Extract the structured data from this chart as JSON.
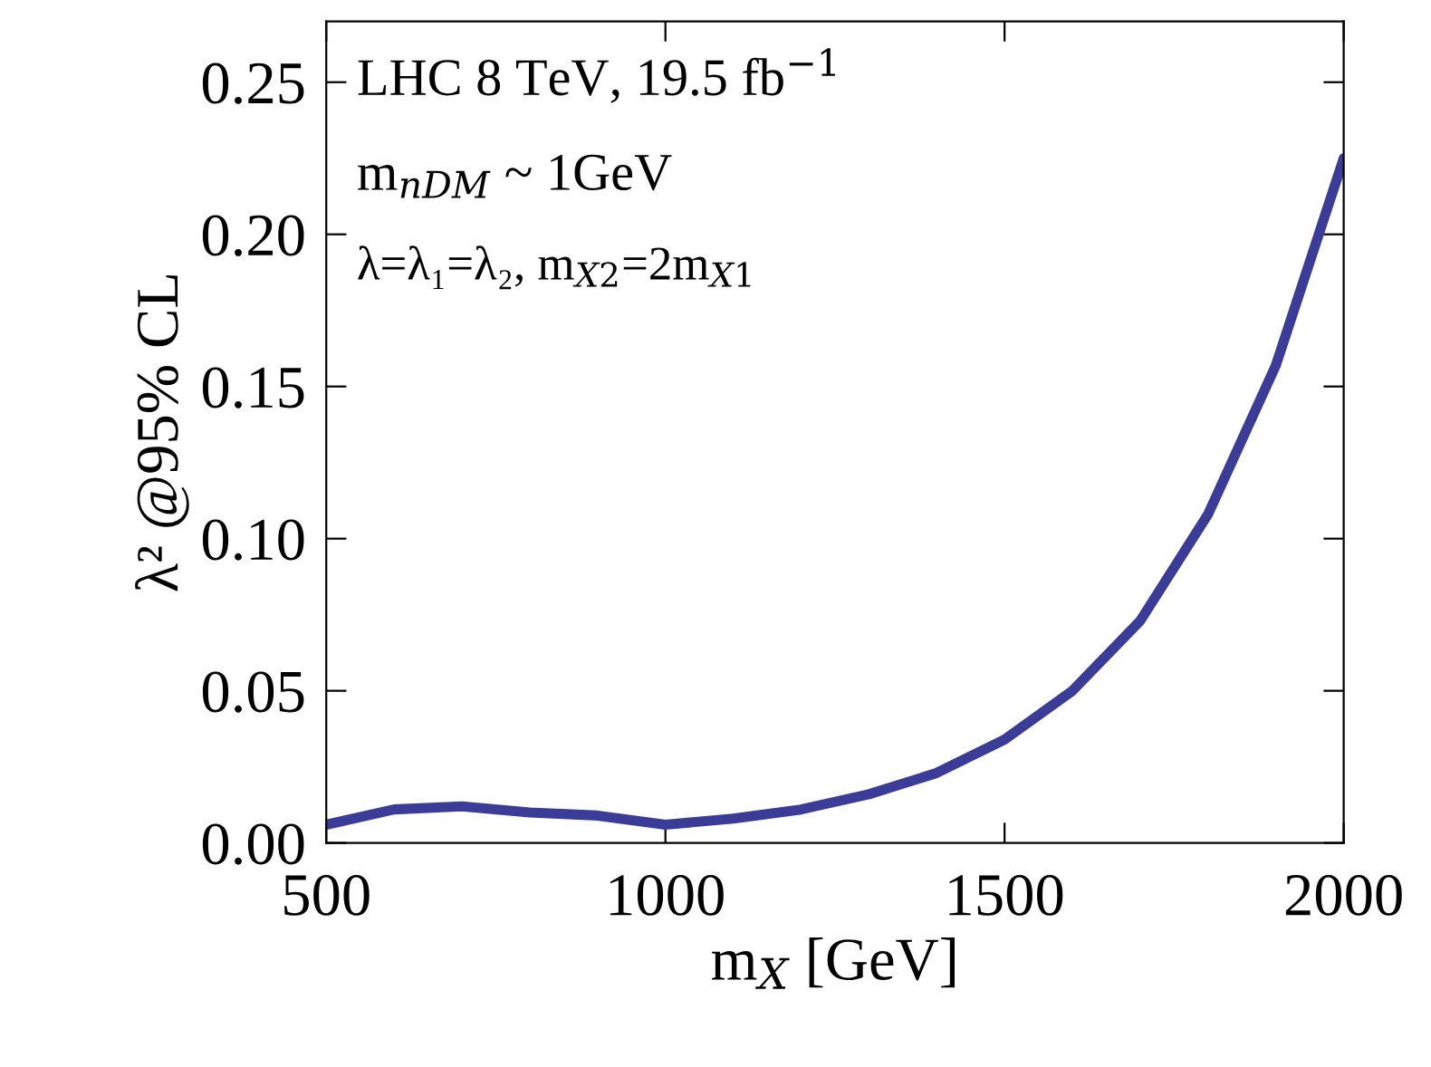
{
  "chart_data": {
    "type": "line",
    "xlabel": "m$_{X}$ [GeV]",
    "ylabel": "λ² @95% CL",
    "annotations": [
      "LHC 8 TeV, 19.5 fb$^{−1}$",
      "m$_{nDM}$ ~ 1GeV",
      "λ=λ₁=λ₂, m$_{X2}$=2m$_{X1}$"
    ],
    "x": [
      500,
      600,
      700,
      800,
      900,
      1000,
      1100,
      1200,
      1300,
      1400,
      1500,
      1600,
      1700,
      1800,
      1900,
      2000
    ],
    "series": [
      {
        "color": "#3b3b98",
        "values": [
          0.006,
          0.011,
          0.012,
          0.01,
          0.009,
          0.006,
          0.008,
          0.011,
          0.016,
          0.023,
          0.034,
          0.05,
          0.073,
          0.108,
          0.157,
          0.225
        ]
      }
    ],
    "xlim": [
      500,
      2000
    ],
    "ylim": [
      0,
      0.27
    ],
    "xticks": [
      500,
      1000,
      1500,
      2000
    ],
    "yticks": [
      {
        "value": 0,
        "label": "0.00"
      },
      {
        "value": 0.05,
        "label": "0.05"
      },
      {
        "value": 0.1,
        "label": "0.10"
      },
      {
        "value": 0.15,
        "label": "0.15"
      },
      {
        "value": 0.2,
        "label": "0.20"
      },
      {
        "value": 0.25,
        "label": "0.25"
      }
    ],
    "grid": false,
    "legend": false
  }
}
